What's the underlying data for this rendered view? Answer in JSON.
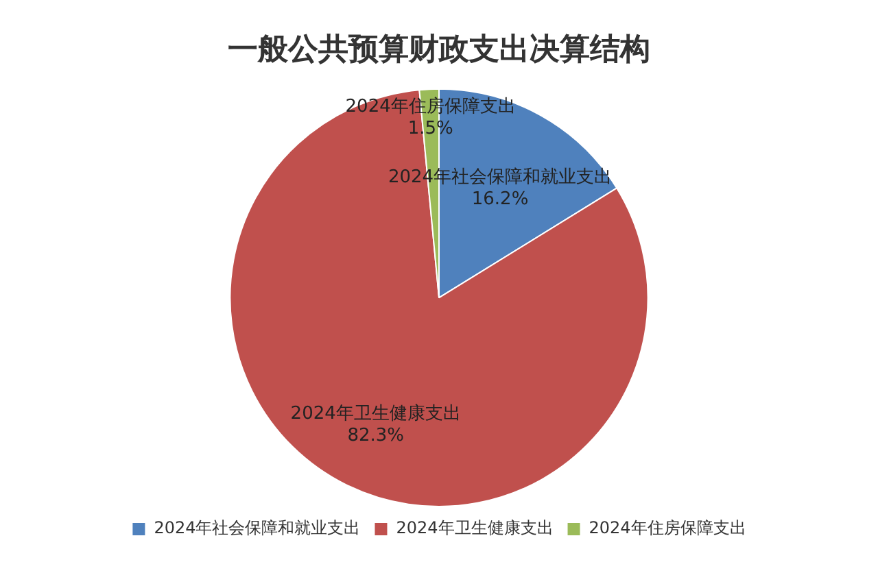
{
  "chart_data": {
    "type": "pie",
    "title": "一般公共预算财政支出决算结构",
    "categories": [
      "2024年社会保障和就业支出",
      "2024年卫生健康支出",
      "2024年住房保障支出"
    ],
    "values": [
      16.2,
      82.3,
      1.5
    ],
    "colors": [
      "#4f81bd",
      "#c0504d",
      "#9bbb59"
    ],
    "value_labels": [
      "16.2%",
      "82.3%",
      "1.5%"
    ],
    "legend": "bottom"
  }
}
